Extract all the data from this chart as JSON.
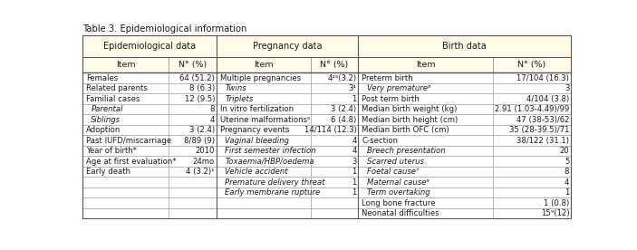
{
  "title": "Table 3. Epidemiological information",
  "header_bg": "#FEFCE8",
  "col_headers": [
    "Epidemiological data",
    "Pregnancy data",
    "Birth data"
  ],
  "sub_headers": [
    "Item",
    "N° (%)",
    "Item",
    "N° (%)",
    "Item",
    "N° (%)"
  ],
  "epi_rows": [
    [
      "Females",
      "64 (51.2)",
      false
    ],
    [
      "Related parents",
      "8 (6.3)",
      false
    ],
    [
      "Familial cases",
      "12 (9.5)",
      false
    ],
    [
      "Parental",
      "8",
      true
    ],
    [
      "Siblings",
      "4",
      true
    ],
    [
      "Adoption",
      "3 (2.4)",
      false
    ],
    [
      "Past IUFD/miscarriage",
      "8/89 (9)",
      false
    ],
    [
      "Year of birth*",
      "2010",
      false
    ],
    [
      "Age at first evaluation*",
      "24mo",
      false
    ],
    [
      "Early death",
      "4 (3.2)¹",
      false
    ],
    [
      "",
      "",
      false
    ],
    [
      "",
      "",
      false
    ],
    [
      "",
      "",
      false
    ],
    [
      "",
      "",
      false
    ]
  ],
  "preg_rows": [
    [
      "Multiple pregnancies",
      "4²³(3.2)",
      false
    ],
    [
      "Twins",
      "3⁴",
      true
    ],
    [
      "Triplets",
      "1",
      true
    ],
    [
      "In vitro fertilization",
      "3 (2.4)",
      false
    ],
    [
      "Uterine malformations⁵",
      "6 (4.8)",
      false
    ],
    [
      "Pregnancy events",
      "14/114 (12.3)",
      false
    ],
    [
      "Vaginal bleeding",
      "4",
      true
    ],
    [
      "First semester infection",
      "4",
      true
    ],
    [
      "Toxaemia/HBP/oedema",
      "3",
      true
    ],
    [
      "Vehicle accident",
      "1",
      true
    ],
    [
      "Premature delivery threat",
      "1",
      true
    ],
    [
      "Early membrane rupture",
      "1",
      true
    ],
    [
      "",
      "",
      false
    ],
    [
      "",
      "",
      false
    ]
  ],
  "birth_rows": [
    [
      "Preterm birth",
      "17/104 (16.3)",
      false
    ],
    [
      "Very premature⁶",
      "3",
      true
    ],
    [
      "Post term birth",
      "4/104 (3.8)",
      false
    ],
    [
      "Median birth weight (kg)",
      "2.91 (1.03-4.49)/99",
      false
    ],
    [
      "Median birth height (cm)",
      "47 (38-53)/62",
      false
    ],
    [
      "Median birth OFC (cm)",
      "35 (28-39.5)/71",
      false
    ],
    [
      "C-section",
      "38/122 (31.1)",
      false
    ],
    [
      "Breech presentation",
      "20",
      true
    ],
    [
      "Scarred uterus",
      "5",
      true
    ],
    [
      "Foetal cause⁷",
      "8",
      true
    ],
    [
      "Maternal cause⁸",
      "4",
      true
    ],
    [
      "Term overtaking",
      "1",
      true
    ],
    [
      "Long bone fracture",
      "1 (0.8)",
      false
    ],
    [
      "Neonatal difficulties",
      "15⁹(12)",
      false
    ]
  ]
}
